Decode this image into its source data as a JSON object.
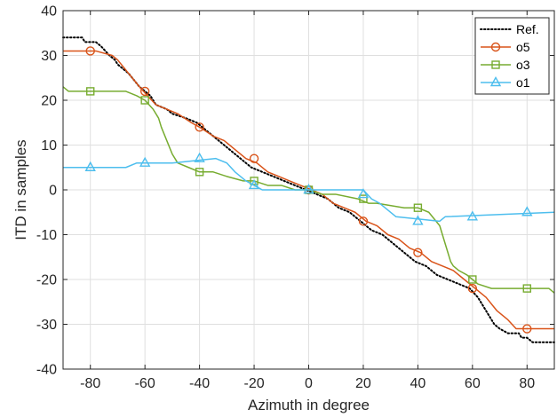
{
  "chart_data": {
    "type": "line",
    "title": "",
    "xlabel": "Azimuth in degree",
    "ylabel": "ITD in samples",
    "xlim": [
      -90,
      90
    ],
    "ylim": [
      -40,
      40
    ],
    "xticks": [
      -80,
      -60,
      -40,
      -20,
      0,
      20,
      40,
      60,
      80
    ],
    "yticks": [
      -40,
      -30,
      -20,
      -10,
      0,
      10,
      20,
      30,
      40
    ],
    "grid": true,
    "legend_position": "top-right",
    "series": [
      {
        "name": "Ref.",
        "color": "#000000",
        "style": "dotted",
        "marker": "none",
        "x": [
          -90,
          -83,
          -82,
          -78,
          -76,
          -73,
          -71,
          -70,
          -66,
          -62,
          -58,
          -56,
          -52,
          -50,
          -45,
          -41,
          -37,
          -33,
          -29,
          -25,
          -21,
          -17,
          -13,
          -9,
          -5,
          -1,
          3,
          7,
          11,
          15,
          19,
          23,
          27,
          31,
          35,
          39,
          43,
          47,
          51,
          55,
          59,
          62,
          64,
          66,
          68,
          70,
          73,
          77,
          78,
          80,
          82,
          84,
          86,
          90
        ],
        "y": [
          34,
          34,
          33,
          33,
          32,
          30,
          29,
          28,
          26,
          23,
          21,
          19,
          18,
          17,
          16,
          15,
          13,
          11,
          9,
          7,
          5,
          4,
          3,
          2,
          1,
          0,
          -1,
          -2,
          -4,
          -5,
          -7,
          -9,
          -10,
          -12,
          -14,
          -16,
          -17,
          -19,
          -20,
          -21,
          -22,
          -24,
          -26,
          -28,
          -30,
          -31,
          -32,
          -32,
          -33,
          -33,
          -34,
          -34,
          -34,
          -34
        ],
        "markers_x": [],
        "markers_y": []
      },
      {
        "name": "o5",
        "color": "#d95319",
        "style": "solid",
        "marker": "circle",
        "x": [
          -90,
          -78,
          -72,
          -70,
          -66,
          -62,
          -59,
          -56,
          -52,
          -48,
          -43,
          -40,
          -35,
          -31,
          -27,
          -23,
          -19,
          -15,
          -11,
          -7,
          -3,
          1,
          5,
          9,
          13,
          17,
          21,
          25,
          29,
          33,
          37,
          41,
          45,
          49,
          53,
          57,
          61,
          65,
          69,
          73,
          76,
          90
        ],
        "y": [
          31,
          31,
          30,
          29,
          26,
          23,
          21,
          19,
          18,
          17,
          15,
          14,
          12,
          11,
          9,
          7,
          6,
          4,
          3,
          2,
          1,
          0,
          -1,
          -3,
          -4,
          -5,
          -7,
          -8,
          -10,
          -11,
          -13,
          -14,
          -16,
          -17,
          -18,
          -20,
          -22,
          -24,
          -27,
          -29,
          -31,
          -31
        ],
        "markers_x": [
          -80,
          -60,
          -40,
          -20,
          0,
          20,
          40,
          60,
          80
        ],
        "markers_y": [
          31,
          22,
          14,
          7,
          0,
          -7,
          -14,
          -22,
          -31
        ]
      },
      {
        "name": "o3",
        "color": "#77ac30",
        "style": "solid",
        "marker": "square",
        "x": [
          -90,
          -88,
          -85,
          -67,
          -63,
          -60,
          -57,
          -55,
          -54,
          -52,
          -50,
          -48,
          -44,
          -40,
          -35,
          -30,
          -24,
          -20,
          -15,
          -10,
          -5,
          -2,
          0,
          5,
          10,
          18,
          22,
          25,
          35,
          40,
          44,
          48,
          50,
          52,
          53,
          55,
          58,
          60,
          62,
          67,
          80,
          88,
          90
        ],
        "y": [
          23,
          22,
          22,
          22,
          21,
          20,
          18,
          16,
          14,
          11,
          8,
          6,
          5,
          4,
          4,
          3,
          2,
          2,
          1,
          1,
          0,
          0,
          0,
          -1,
          -1,
          -2,
          -3,
          -3,
          -4,
          -4,
          -5,
          -8,
          -12,
          -16,
          -17,
          -18,
          -19,
          -20,
          -21,
          -22,
          -22,
          -22,
          -23
        ],
        "markers_x": [
          -80,
          -60,
          -40,
          -20,
          0,
          20,
          40,
          60,
          80
        ],
        "markers_y": [
          22,
          20,
          4,
          2,
          0,
          -2,
          -4,
          -20,
          -22
        ]
      },
      {
        "name": "o1",
        "color": "#4dbeee",
        "style": "solid",
        "marker": "triangle",
        "x": [
          -90,
          -67,
          -63,
          -50,
          -34,
          -30,
          -27,
          -23,
          -20,
          -17,
          -12,
          -5,
          0,
          20,
          23,
          26,
          32,
          48,
          50,
          90
        ],
        "y": [
          5,
          5,
          6,
          6,
          7,
          6,
          4,
          2,
          1,
          0,
          0,
          0,
          0,
          0,
          -2,
          -3,
          -6,
          -7,
          -6,
          -5
        ],
        "markers_x": [
          -80,
          -60,
          -40,
          -20,
          0,
          20,
          40,
          60,
          80
        ],
        "markers_y": [
          5,
          6,
          7,
          1,
          0,
          -1,
          -7,
          -6,
          -5
        ]
      }
    ]
  }
}
